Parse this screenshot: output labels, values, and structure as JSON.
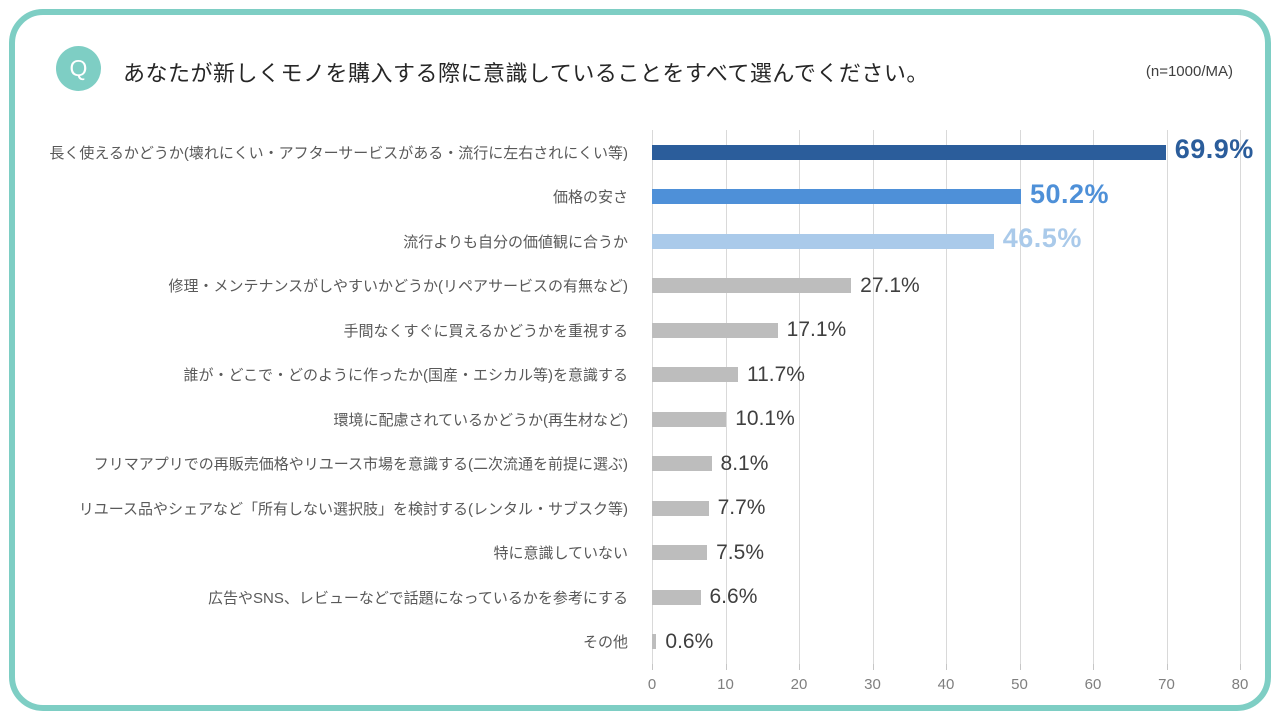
{
  "header": {
    "q_badge": "Q",
    "title": "あなたが新しくモノを購入する際に意識していることをすべて選んでください。",
    "note": "(n=1000/MA)"
  },
  "colors": {
    "panel_border": "#7ECEC4",
    "q_badge_bg": "#7ECEC4",
    "q_badge_text": "#FFFFFF",
    "title_text": "#262626",
    "gridline": "#D9D9D9",
    "axis_text": "#7F7F7F",
    "label_text": "#595959",
    "value_text_gray": "#3F3F3F",
    "bar_gray": "#BDBDBD",
    "bar_dark_blue": "#2B5D9B",
    "bar_mid_blue": "#4E90D8",
    "bar_light_blue": "#AACAEA"
  },
  "chart_data": {
    "type": "bar",
    "orientation": "horizontal",
    "title": "あなたが新しくモノを購入する際に意識していることをすべて選んでください。",
    "subtitle": "(n=1000/MA)",
    "categories": [
      "長く使えるかどうか(壊れにくい・アフターサービスがある・流行に左右されにくい等)",
      "価格の安さ",
      "流行よりも自分の価値観に合うか",
      "修理・メンテナンスがしやすいかどうか(リペアサービスの有無など)",
      "手間なくすぐに買えるかどうかを重視する",
      "誰が・どこで・どのように作ったか(国産・エシカル等)を意識する",
      "環境に配慮されているかどうか(再生材など)",
      "フリマアプリでの再販売価格やリユース市場を意識する(二次流通を前提に選ぶ)",
      "リユース品やシェアなど「所有しない選択肢」を検討する(レンタル・サブスク等)",
      "特に意識していない",
      "広告やSNS、レビューなどで話題になっているかを参考にする",
      "その他"
    ],
    "values": [
      69.9,
      50.2,
      46.5,
      27.1,
      17.1,
      11.7,
      10.1,
      8.1,
      7.7,
      7.5,
      6.6,
      0.6
    ],
    "value_labels": [
      "69.9%",
      "50.2%",
      "46.5%",
      "27.1%",
      "17.1%",
      "11.7%",
      "10.1%",
      "8.1%",
      "7.7%",
      "7.5%",
      "6.6%",
      "0.6%"
    ],
    "bar_colors": [
      "#2B5D9B",
      "#4E90D8",
      "#AACAEA",
      "#BDBDBD",
      "#BDBDBD",
      "#BDBDBD",
      "#BDBDBD",
      "#BDBDBD",
      "#BDBDBD",
      "#BDBDBD",
      "#BDBDBD",
      "#BDBDBD"
    ],
    "value_colors": [
      "#2B5D9B",
      "#4E90D8",
      "#AACAEA",
      "#3F3F3F",
      "#3F3F3F",
      "#3F3F3F",
      "#3F3F3F",
      "#3F3F3F",
      "#3F3F3F",
      "#3F3F3F",
      "#3F3F3F",
      "#3F3F3F"
    ],
    "highlight_count": 3,
    "xlabel": "",
    "ylabel": "",
    "xlim": [
      0,
      80
    ],
    "xticks": [
      0,
      10,
      20,
      30,
      40,
      50,
      60,
      70,
      80
    ],
    "grid": true,
    "legend": false
  }
}
